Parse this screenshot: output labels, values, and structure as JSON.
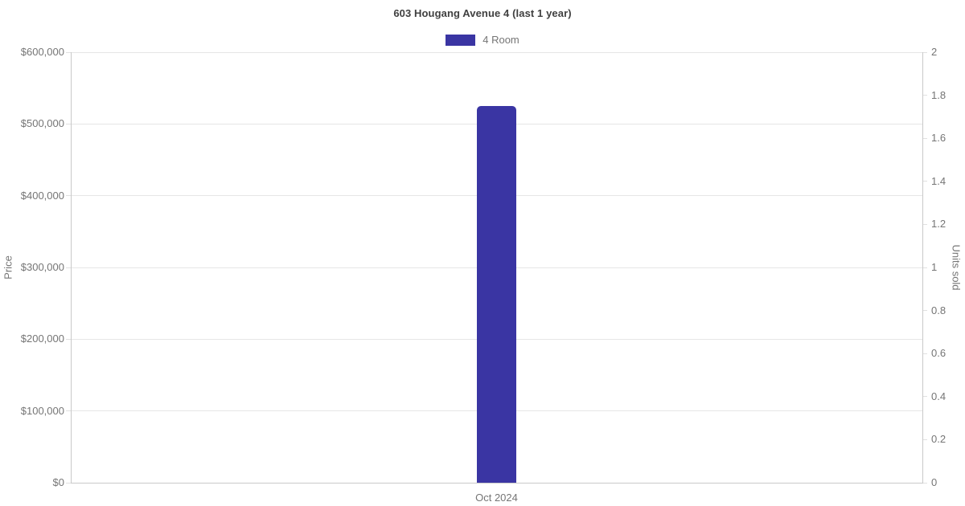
{
  "chart_data": {
    "type": "bar",
    "title": "603 Hougang Avenue 4 (last 1 year)",
    "categories": [
      "Oct 2024"
    ],
    "series": [
      {
        "name": "4 Room",
        "color": "#3a35a3",
        "axis": "left",
        "values": [
          525000
        ]
      }
    ],
    "left_axis": {
      "label": "Price",
      "min": 0,
      "max": 600000,
      "ticks": [
        {
          "value": 0,
          "label": "$0"
        },
        {
          "value": 100000,
          "label": "$100,000"
        },
        {
          "value": 200000,
          "label": "$200,000"
        },
        {
          "value": 300000,
          "label": "$300,000"
        },
        {
          "value": 400000,
          "label": "$400,000"
        },
        {
          "value": 500000,
          "label": "$500,000"
        },
        {
          "value": 600000,
          "label": "$600,000"
        }
      ]
    },
    "right_axis": {
      "label": "Units sold",
      "min": 0,
      "max": 2,
      "ticks": [
        {
          "value": 0,
          "label": "0"
        },
        {
          "value": 0.2,
          "label": "0.2"
        },
        {
          "value": 0.4,
          "label": "0.4"
        },
        {
          "value": 0.6,
          "label": "0.6"
        },
        {
          "value": 0.8,
          "label": "0.8"
        },
        {
          "value": 1,
          "label": "1"
        },
        {
          "value": 1.2,
          "label": "1.2"
        },
        {
          "value": 1.4,
          "label": "1.4"
        },
        {
          "value": 1.6,
          "label": "1.6"
        },
        {
          "value": 1.8,
          "label": "1.8"
        },
        {
          "value": 2,
          "label": "2"
        }
      ]
    },
    "grid": true,
    "legend_position": "top",
    "colors": {
      "grid": "#e6e6e6",
      "axis": "#c9c9c9",
      "text": "#757575",
      "title": "#404040",
      "background": "#ffffff"
    }
  }
}
